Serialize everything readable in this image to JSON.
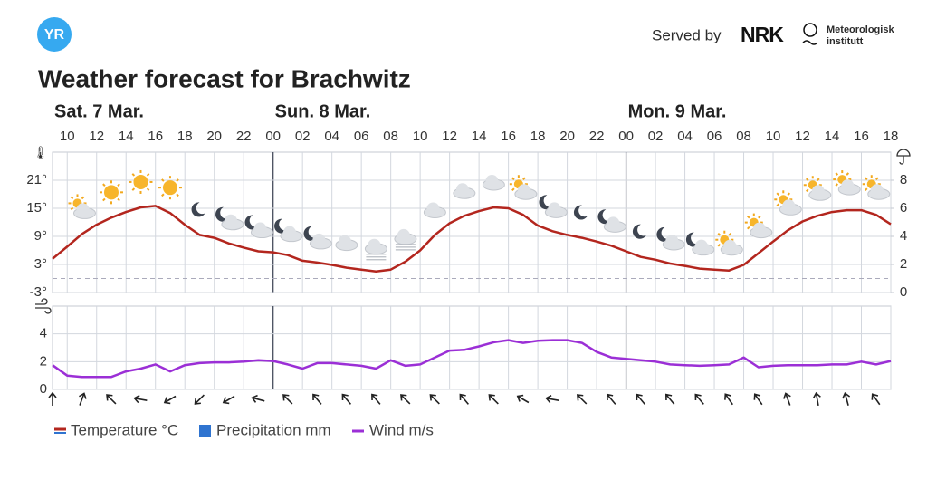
{
  "header": {
    "logo": "YR",
    "served_by": "Served by",
    "nrk": "NRK",
    "met_line1": "Meteorologisk",
    "met_line2": "institutt"
  },
  "chart_data": [
    {
      "type": "line",
      "title": "Weather forecast for Brachwitz",
      "day_labels": [
        {
          "value": 9,
          "label": "Sat. 7 Mar."
        },
        {
          "value": 24,
          "label": "Sun. 8 Mar."
        },
        {
          "value": 48,
          "label": "Mon. 9 Mar."
        }
      ],
      "x": [
        9,
        10,
        11,
        12,
        13,
        14,
        15,
        16,
        17,
        18,
        19,
        20,
        21,
        22,
        23,
        24,
        25,
        26,
        27,
        28,
        29,
        30,
        31,
        32,
        33,
        34,
        35,
        36,
        37,
        38,
        39,
        40,
        41,
        42,
        43,
        44,
        45,
        46,
        47,
        48,
        49,
        50,
        51,
        52,
        53,
        54,
        55,
        56,
        57,
        58,
        59,
        60,
        61,
        62,
        63,
        64,
        65,
        66
      ],
      "xlim": [
        9,
        66
      ],
      "xticks": [
        10,
        12,
        14,
        16,
        18,
        20,
        22,
        {
          "value": 24,
          "label": "00"
        },
        {
          "value": 26,
          "label": "02"
        },
        {
          "value": 28,
          "label": "04"
        },
        {
          "value": 30,
          "label": "06"
        },
        {
          "value": 32,
          "label": "08"
        },
        {
          "value": 34,
          "label": "10"
        },
        {
          "value": 36,
          "label": "12"
        },
        {
          "value": 38,
          "label": "14"
        },
        {
          "value": 40,
          "label": "16"
        },
        {
          "value": 42,
          "label": "18"
        },
        {
          "value": 44,
          "label": "20"
        },
        {
          "value": 46,
          "label": "22"
        },
        {
          "value": 48,
          "label": "00"
        },
        {
          "value": 50,
          "label": "02"
        },
        {
          "value": 52,
          "label": "04"
        },
        {
          "value": 54,
          "label": "06"
        },
        {
          "value": 56,
          "label": "08"
        },
        {
          "value": 58,
          "label": "10"
        },
        {
          "value": 60,
          "label": "12"
        },
        {
          "value": 62,
          "label": "14"
        },
        {
          "value": 64,
          "label": "16"
        },
        {
          "value": 66,
          "label": "18"
        }
      ],
      "ylim": [
        -3,
        27
      ],
      "yticks": [
        {
          "value": -3,
          "label": "-3°"
        },
        {
          "value": 3,
          "label": "3°"
        },
        {
          "value": 9,
          "label": "9°"
        },
        {
          "value": 15,
          "label": "15°"
        },
        {
          "value": 21,
          "label": "21°"
        }
      ],
      "y2lim": [
        0,
        10
      ],
      "y2ticks": [
        0,
        2,
        4,
        6,
        8
      ],
      "freezing_line": 0,
      "grid": true,
      "series": [
        {
          "name": "Temperature °C",
          "color": "#b3261e",
          "values": [
            4.2,
            6.8,
            9.5,
            11.5,
            13,
            14.2,
            15.2,
            15.5,
            14,
            11.5,
            9.3,
            8.7,
            7.5,
            6.6,
            5.8,
            5.6,
            5,
            3.8,
            3.4,
            2.9,
            2.3,
            1.9,
            1.5,
            1.9,
            3.6,
            6,
            9.3,
            11.8,
            13.4,
            14.4,
            15.2,
            15,
            13.6,
            11.3,
            10.1,
            9.3,
            8.7,
            7.9,
            7,
            5.8,
            4.6,
            4,
            3.2,
            2.7,
            2.1,
            1.9,
            1.7,
            2.9,
            5.4,
            7.9,
            10.3,
            12.2,
            13.4,
            14.2,
            14.6,
            14.6,
            13.6,
            11.6
          ]
        },
        {
          "name": "Precipitation mm",
          "color": "#2f74d0",
          "axis": "y2",
          "values": [
            0,
            0,
            0,
            0,
            0,
            0,
            0,
            0,
            0,
            0,
            0,
            0,
            0,
            0,
            0,
            0,
            0,
            0,
            0,
            0,
            0,
            0,
            0,
            0,
            0,
            0,
            0,
            0,
            0,
            0,
            0,
            0,
            0,
            0,
            0,
            0,
            0,
            0,
            0,
            0,
            0,
            0,
            0,
            0,
            0,
            0,
            0,
            0,
            0,
            0,
            0,
            0,
            0,
            0,
            0,
            0,
            0,
            0
          ]
        }
      ]
    },
    {
      "type": "line",
      "x": [
        9,
        10,
        11,
        12,
        13,
        14,
        15,
        16,
        17,
        18,
        19,
        20,
        21,
        22,
        23,
        24,
        25,
        26,
        27,
        28,
        29,
        30,
        31,
        32,
        33,
        34,
        35,
        36,
        37,
        38,
        39,
        40,
        41,
        42,
        43,
        44,
        45,
        46,
        47,
        48,
        49,
        50,
        51,
        52,
        53,
        54,
        55,
        56,
        57,
        58,
        59,
        60,
        61,
        62,
        63,
        64,
        65,
        66
      ],
      "ylim": [
        0,
        6
      ],
      "yticks": [
        0,
        2,
        4
      ],
      "grid": true,
      "series": [
        {
          "name": "Wind m/s",
          "color": "#9b2fd6",
          "values": [
            1.75,
            1,
            0.9,
            0.9,
            0.9,
            1.3,
            1.5,
            1.8,
            1.3,
            1.75,
            1.9,
            1.95,
            1.95,
            2,
            2.1,
            2.05,
            1.8,
            1.5,
            1.9,
            1.9,
            1.8,
            1.7,
            1.5,
            2.1,
            1.7,
            1.8,
            2.3,
            2.8,
            2.85,
            3.1,
            3.4,
            3.55,
            3.35,
            3.5,
            3.55,
            3.55,
            3.35,
            2.7,
            2.3,
            2.2,
            2.1,
            2,
            1.8,
            1.75,
            1.7,
            1.75,
            1.8,
            2.3,
            1.6,
            1.7,
            1.75,
            1.75,
            1.75,
            1.8,
            1.8,
            2,
            1.8,
            2.05
          ]
        }
      ],
      "wind_direction_deg": [
        0,
        20,
        -45,
        -80,
        -120,
        -135,
        -120,
        -75,
        -45,
        -40,
        -40,
        -40,
        -45,
        -45,
        -40,
        -45,
        -60,
        -80,
        -45,
        -40,
        -40,
        -40,
        -40,
        -35,
        -35,
        -20,
        -10,
        -15,
        -35
      ]
    }
  ]
}
